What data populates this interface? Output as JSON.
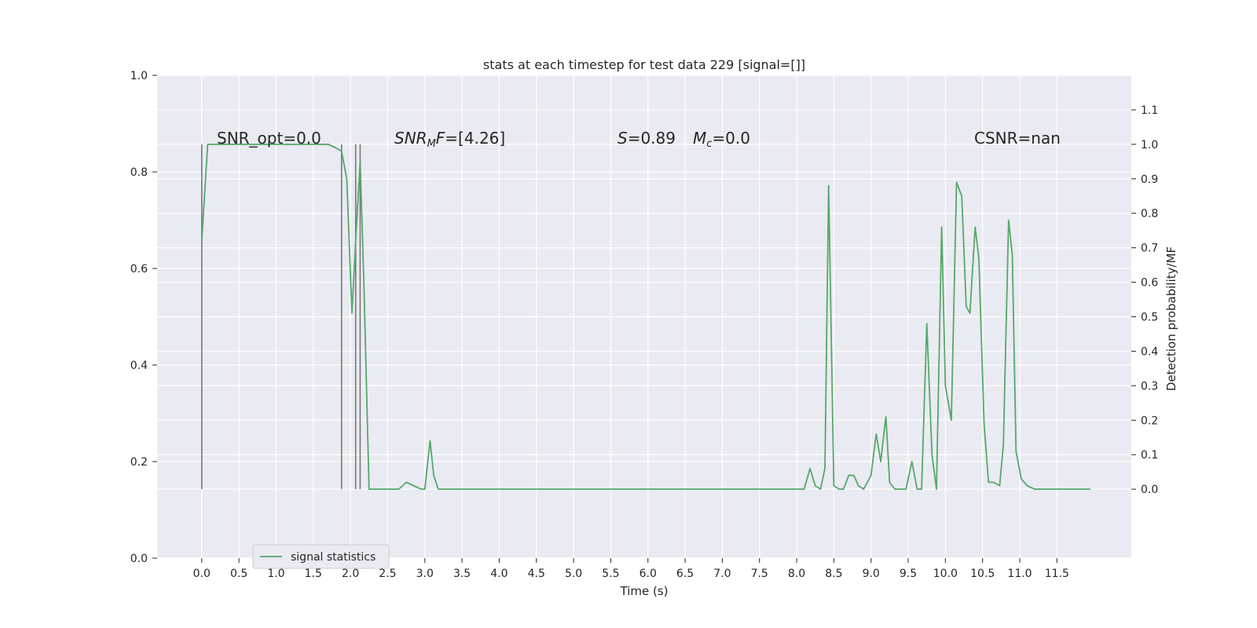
{
  "chart_data": {
    "type": "line",
    "title": "stats at each timestep for test data 229 [signal=[]]",
    "xlabel": "Time (s)",
    "ylabel": "",
    "ylabel_right": "Detection probability/MF",
    "xlim": [
      -0.6,
      12.5
    ],
    "ylim": [
      0,
      1
    ],
    "ylim_right": [
      -0.2,
      1.2
    ],
    "x_ticks": [
      0.0,
      0.5,
      1.0,
      1.5,
      2.0,
      2.5,
      3.0,
      3.5,
      4.0,
      4.5,
      5.0,
      5.5,
      6.0,
      6.5,
      7.0,
      7.5,
      8.0,
      8.5,
      9.0,
      9.5,
      10.0,
      10.5,
      11.0,
      11.5
    ],
    "x_tick_labels": [
      "0.0",
      "0.5",
      "1.0",
      "1.5",
      "2.0",
      "2.5",
      "3.0",
      "3.5",
      "4.0",
      "4.5",
      "5.0",
      "5.5",
      "6.0",
      "6.5",
      "7.0",
      "7.5",
      "8.0",
      "8.5",
      "9.0",
      "9.5",
      "10.0",
      "10.5",
      "11.0",
      "11.5"
    ],
    "y_ticks": [
      0.0,
      0.2,
      0.4,
      0.6,
      0.8,
      1.0
    ],
    "y_tick_labels": [
      "0.0",
      "0.2",
      "0.4",
      "0.6",
      "0.8",
      "1.0"
    ],
    "y_right_ticks": [
      0.0,
      0.1,
      0.2,
      0.3,
      0.4,
      0.5,
      0.6,
      0.7,
      0.8,
      0.9,
      1.0,
      1.1
    ],
    "y_right_tick_labels": [
      "0.0",
      "0.1",
      "0.2",
      "0.3",
      "0.4",
      "0.5",
      "0.6",
      "0.7",
      "0.8",
      "0.9",
      "1.0",
      "1.1"
    ],
    "grid": true,
    "background": "#eaeaf2",
    "line_color": "#55a868",
    "vline_color": "#777777",
    "legend_position": "lower-left",
    "annotations": {
      "snr_opt": "SNR_opt=0.0",
      "snr_mf": "=[4.26]",
      "snr_mf_base": "SNR",
      "snr_mf_sub": "M",
      "snr_mf_tail": "F",
      "s_val": "=0.89",
      "s_symbol": "S",
      "mc_symbol": "M",
      "mc_sub": "c",
      "mc_val": "=0.0",
      "csnr": "CSNR=nan"
    },
    "vertical_lines": [
      0.0,
      1.88,
      2.07,
      2.13
    ],
    "vertical_lines_range": [
      0.0,
      1.0
    ],
    "series": [
      {
        "name": "signal statistics",
        "axis": "right",
        "x": [
          0.0,
          0.08,
          0.15,
          1.7,
          1.8,
          1.88,
          1.95,
          2.02,
          2.07,
          2.13,
          2.18,
          2.25,
          2.35,
          2.45,
          2.55,
          2.65,
          2.75,
          2.85,
          2.95,
          3.0,
          3.07,
          3.12,
          3.18,
          3.25,
          3.35,
          3.45,
          3.55,
          3.6,
          3.65,
          3.7,
          3.8,
          3.9,
          4.0,
          5.0,
          6.0,
          7.0,
          8.0,
          8.1,
          8.18,
          8.25,
          8.32,
          8.38,
          8.43,
          8.5,
          8.57,
          8.63,
          8.7,
          8.77,
          8.83,
          8.9,
          9.0,
          9.07,
          9.13,
          9.2,
          9.25,
          9.32,
          9.4,
          9.47,
          9.55,
          9.62,
          9.68,
          9.75,
          9.82,
          9.88,
          9.95,
          10.0,
          10.08,
          10.15,
          10.22,
          10.28,
          10.33,
          10.4,
          10.45,
          10.52,
          10.58,
          10.65,
          10.73,
          10.78,
          10.85,
          10.9,
          10.95,
          11.02,
          11.1,
          11.2,
          11.3,
          11.5,
          11.95
        ],
        "y": [
          0.72,
          1.0,
          1.0,
          1.0,
          0.99,
          0.98,
          0.9,
          0.51,
          0.72,
          0.95,
          0.6,
          0.0,
          0.0,
          0.0,
          0.0,
          0.0,
          0.02,
          0.01,
          0.0,
          0.0,
          0.14,
          0.04,
          0.0,
          0.0,
          0.0,
          0.0,
          0.0,
          0.0,
          0.0,
          0.0,
          0.0,
          0.0,
          0.0,
          0.0,
          0.0,
          0.0,
          0.0,
          0.0,
          0.06,
          0.01,
          0.0,
          0.06,
          0.88,
          0.01,
          0.0,
          0.0,
          0.04,
          0.04,
          0.01,
          0.0,
          0.04,
          0.16,
          0.08,
          0.21,
          0.02,
          0.0,
          0.0,
          0.0,
          0.08,
          0.0,
          0.0,
          0.48,
          0.1,
          0.0,
          0.76,
          0.3,
          0.2,
          0.89,
          0.85,
          0.53,
          0.51,
          0.76,
          0.67,
          0.19,
          0.02,
          0.02,
          0.01,
          0.13,
          0.78,
          0.68,
          0.11,
          0.03,
          0.01,
          0.0,
          0.0,
          0.0,
          0.0
        ]
      }
    ]
  }
}
